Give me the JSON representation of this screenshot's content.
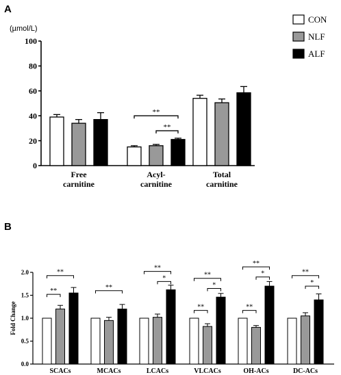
{
  "chart_data": [
    {
      "panel_label": "A",
      "type": "bar",
      "unit_label": "(µmol/L)",
      "ylim": [
        0,
        100
      ],
      "yticks": [
        0,
        20,
        40,
        60,
        80,
        100
      ],
      "categories": [
        {
          "lines": [
            "Free",
            "carnitine"
          ]
        },
        {
          "lines": [
            "Acyl-",
            "carnitine"
          ]
        },
        {
          "lines": [
            "Total",
            "carnitine"
          ]
        }
      ],
      "series": [
        {
          "name": "CON",
          "color": "#ffffff",
          "values": [
            39,
            15,
            54
          ],
          "errors": [
            2,
            1,
            2.5
          ]
        },
        {
          "name": "NLF",
          "color": "#999999",
          "values": [
            34,
            16,
            50.5
          ],
          "errors": [
            3,
            1,
            3
          ]
        },
        {
          "name": "ALF",
          "color": "#000000",
          "values": [
            37,
            21,
            58.5
          ],
          "errors": [
            5.5,
            1,
            5
          ]
        }
      ],
      "significance": [
        {
          "category": 1,
          "from": 0,
          "to": 2,
          "label": "**",
          "y": 40
        },
        {
          "category": 1,
          "from": 1,
          "to": 2,
          "label": "**",
          "y": 28
        }
      ],
      "legend": {
        "position": "top-right",
        "items": [
          "CON",
          "NLF",
          "ALF"
        ]
      }
    },
    {
      "panel_label": "B",
      "type": "bar",
      "ylabel": "Fold Change",
      "ylim": [
        0,
        2.0
      ],
      "yticks": [
        "0.0",
        "0.5",
        "1.0",
        "1.5",
        "2.0"
      ],
      "categories": [
        "SCACs",
        "MCACs",
        "LCACs",
        "VLCACs",
        "OH-ACs",
        "DC-ACs"
      ],
      "series": [
        {
          "name": "CON",
          "color": "#ffffff",
          "values": [
            1.0,
            1.0,
            1.0,
            1.0,
            1.0,
            1.0
          ],
          "errors": [
            0,
            0,
            0,
            0,
            0,
            0
          ]
        },
        {
          "name": "NLF",
          "color": "#999999",
          "values": [
            1.2,
            0.95,
            1.02,
            0.82,
            0.8,
            1.05
          ],
          "errors": [
            0.08,
            0.07,
            0.07,
            0.06,
            0.04,
            0.07
          ]
        },
        {
          "name": "ALF",
          "color": "#000000",
          "values": [
            1.55,
            1.2,
            1.62,
            1.46,
            1.7,
            1.4
          ],
          "errors": [
            0.12,
            0.1,
            0.1,
            0.08,
            0.1,
            0.13
          ]
        }
      ],
      "significance": [
        {
          "category": 0,
          "from": 0,
          "to": 2,
          "label": "**",
          "y": 1.93
        },
        {
          "category": 0,
          "from": 0,
          "to": 1,
          "label": "**",
          "y": 1.52
        },
        {
          "category": 1,
          "from": 0,
          "to": 2,
          "label": "**",
          "y": 1.6
        },
        {
          "category": 2,
          "from": 0,
          "to": 2,
          "label": "**",
          "y": 2.02
        },
        {
          "category": 2,
          "from": 1,
          "to": 2,
          "label": "*",
          "y": 1.8
        },
        {
          "category": 3,
          "from": 0,
          "to": 2,
          "label": "**",
          "y": 1.87
        },
        {
          "category": 3,
          "from": 0,
          "to": 1,
          "label": "**",
          "y": 1.17
        },
        {
          "category": 3,
          "from": 1,
          "to": 2,
          "label": "*",
          "y": 1.65
        },
        {
          "category": 4,
          "from": 0,
          "to": 2,
          "label": "**",
          "y": 2.12
        },
        {
          "category": 4,
          "from": 0,
          "to": 1,
          "label": "**",
          "y": 1.17
        },
        {
          "category": 4,
          "from": 1,
          "to": 2,
          "label": "*",
          "y": 1.9
        },
        {
          "category": 5,
          "from": 0,
          "to": 2,
          "label": "**",
          "y": 1.93
        },
        {
          "category": 5,
          "from": 1,
          "to": 2,
          "label": "*",
          "y": 1.7
        }
      ]
    }
  ]
}
